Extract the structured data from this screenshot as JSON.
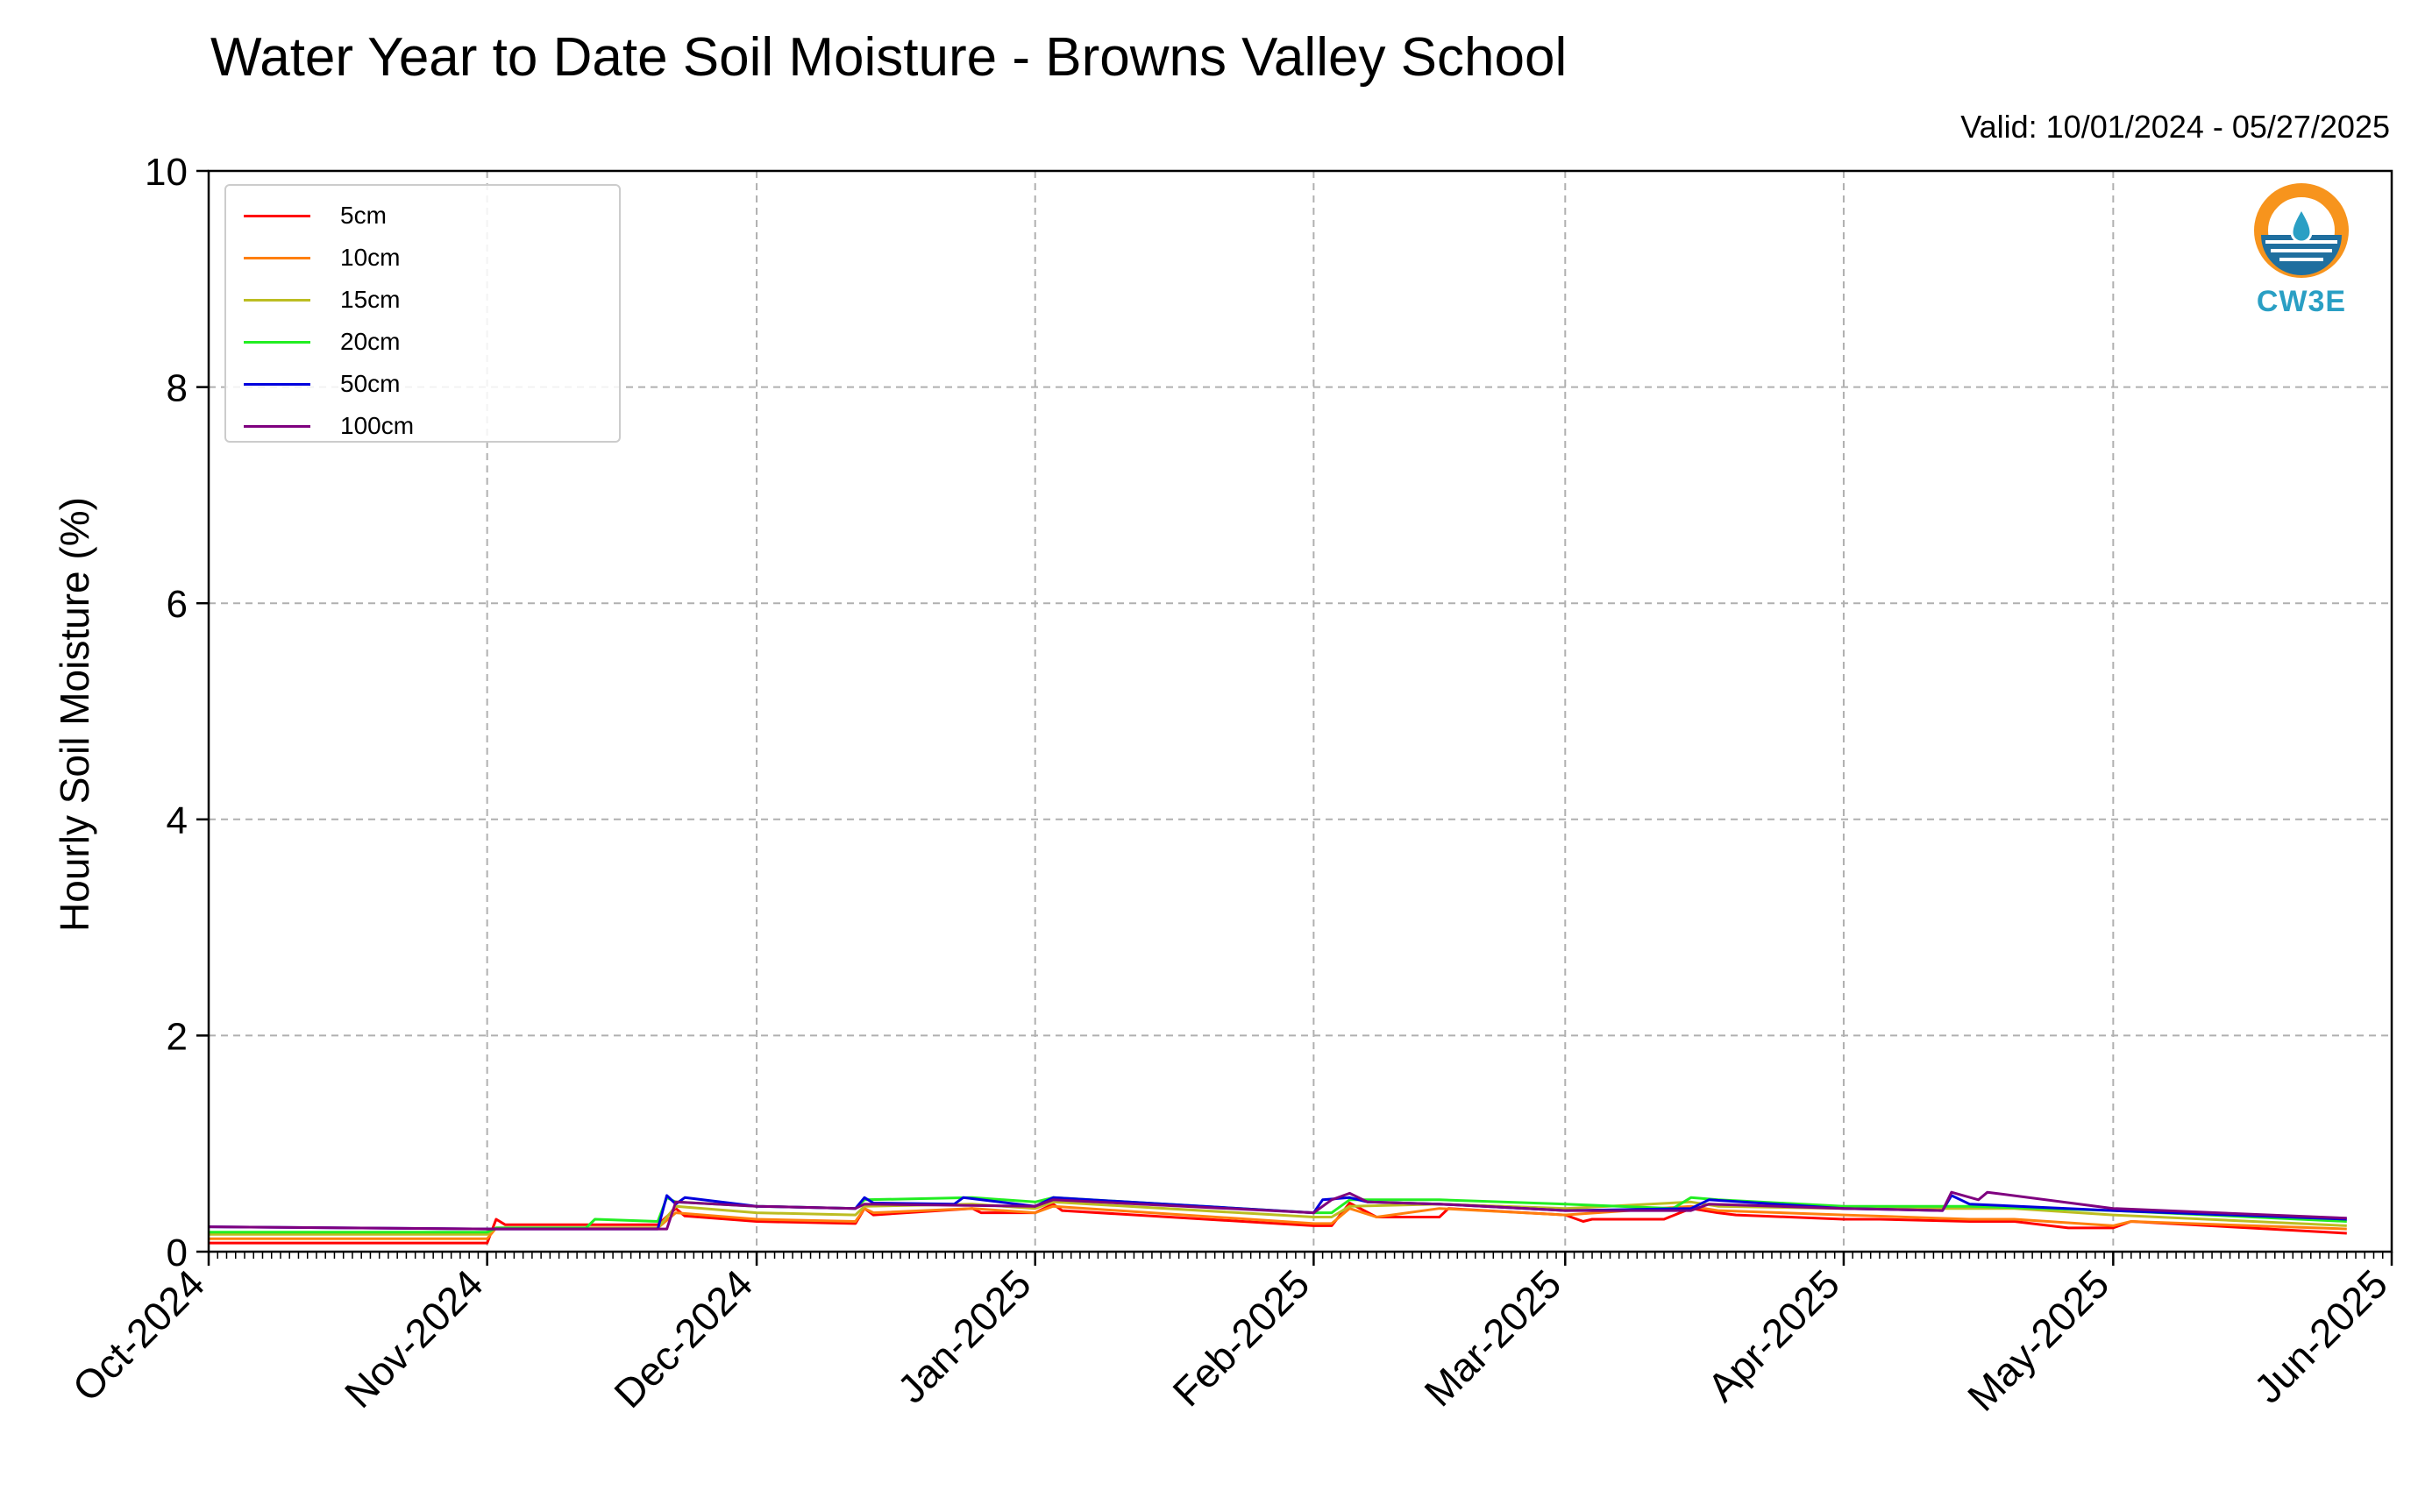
{
  "header": {
    "title": "Water Year to Date Soil Moisture - Browns Valley School",
    "valid": "Valid: 10/01/2024 - 05/27/2025"
  },
  "logo": {
    "text": "CW3E",
    "icon": "cw3e-droplet-logo"
  },
  "chart_data": {
    "type": "line",
    "title": "Water Year to Date Soil Moisture - Browns Valley School",
    "xlabel": "",
    "ylabel": "Hourly Soil Moisture (%)",
    "ylim": [
      0,
      10
    ],
    "yticks": [
      0,
      2,
      4,
      6,
      8,
      10
    ],
    "xlim": [
      "2024-10-01",
      "2025-06-01"
    ],
    "xtick_labels": [
      "Oct-2024",
      "Nov-2024",
      "Dec-2024",
      "Jan-2025",
      "Feb-2025",
      "Mar-2025",
      "Apr-2025",
      "May-2025",
      "Jun-2025"
    ],
    "xtick_dates": [
      "2024-10-01",
      "2024-11-01",
      "2024-12-01",
      "2025-01-01",
      "2025-02-01",
      "2025-03-01",
      "2025-04-01",
      "2025-05-01",
      "2025-06-01"
    ],
    "grid": true,
    "legend_position": "top-left",
    "series": [
      {
        "name": "5cm",
        "color": "#ff0000",
        "x": [
          "2024-10-01",
          "2024-11-01",
          "2024-11-02",
          "2024-11-03",
          "2024-11-20",
          "2024-11-22",
          "2024-11-23",
          "2024-12-01",
          "2024-12-12",
          "2024-12-13",
          "2024-12-14",
          "2024-12-25",
          "2024-12-26",
          "2025-01-01",
          "2025-01-03",
          "2025-01-04",
          "2025-02-01",
          "2025-02-03",
          "2025-02-05",
          "2025-02-08",
          "2025-02-15",
          "2025-02-16",
          "2025-03-01",
          "2025-03-03",
          "2025-03-04",
          "2025-03-12",
          "2025-03-15",
          "2025-03-18",
          "2025-03-20",
          "2025-04-01",
          "2025-04-05",
          "2025-04-15",
          "2025-04-20",
          "2025-04-26",
          "2025-05-01",
          "2025-05-03",
          "2025-05-27"
        ],
        "y": [
          0.08,
          0.08,
          0.3,
          0.25,
          0.25,
          0.4,
          0.33,
          0.28,
          0.26,
          0.4,
          0.34,
          0.4,
          0.36,
          0.36,
          0.44,
          0.38,
          0.24,
          0.24,
          0.45,
          0.32,
          0.32,
          0.4,
          0.34,
          0.28,
          0.3,
          0.3,
          0.4,
          0.36,
          0.34,
          0.3,
          0.3,
          0.28,
          0.28,
          0.22,
          0.22,
          0.28,
          0.17
        ]
      },
      {
        "name": "10cm",
        "color": "#ff7f0e",
        "x": [
          "2024-10-01",
          "2024-11-01",
          "2024-11-02",
          "2024-11-20",
          "2024-11-22",
          "2024-12-01",
          "2024-12-12",
          "2024-12-13",
          "2024-12-14",
          "2024-12-25",
          "2025-01-01",
          "2025-01-03",
          "2025-02-01",
          "2025-02-03",
          "2025-02-05",
          "2025-02-08",
          "2025-02-15",
          "2025-03-01",
          "2025-03-15",
          "2025-03-18",
          "2025-04-01",
          "2025-04-15",
          "2025-04-20",
          "2025-05-01",
          "2025-05-03",
          "2025-05-27"
        ],
        "y": [
          0.12,
          0.12,
          0.22,
          0.22,
          0.36,
          0.3,
          0.28,
          0.4,
          0.36,
          0.4,
          0.36,
          0.42,
          0.26,
          0.26,
          0.4,
          0.32,
          0.4,
          0.34,
          0.42,
          0.38,
          0.34,
          0.3,
          0.3,
          0.24,
          0.28,
          0.21
        ]
      },
      {
        "name": "15cm",
        "color": "#bcbd22",
        "x": [
          "2024-10-01",
          "2024-11-01",
          "2024-11-02",
          "2024-11-20",
          "2024-11-22",
          "2024-12-01",
          "2024-12-12",
          "2024-12-13",
          "2024-12-25",
          "2025-01-01",
          "2025-01-03",
          "2025-02-01",
          "2025-02-03",
          "2025-02-05",
          "2025-02-15",
          "2025-03-01",
          "2025-03-15",
          "2025-03-18",
          "2025-04-01",
          "2025-04-15",
          "2025-04-20",
          "2025-05-01",
          "2025-05-27"
        ],
        "y": [
          0.16,
          0.16,
          0.22,
          0.22,
          0.42,
          0.36,
          0.34,
          0.42,
          0.44,
          0.4,
          0.46,
          0.32,
          0.32,
          0.42,
          0.44,
          0.4,
          0.46,
          0.42,
          0.4,
          0.4,
          0.4,
          0.34,
          0.24
        ]
      },
      {
        "name": "20cm",
        "color": "#22ee22",
        "x": [
          "2024-10-01",
          "2024-11-01",
          "2024-11-02",
          "2024-11-12",
          "2024-11-13",
          "2024-11-20",
          "2024-11-21",
          "2024-11-22",
          "2024-12-01",
          "2024-12-12",
          "2024-12-13",
          "2024-12-25",
          "2025-01-01",
          "2025-01-03",
          "2025-02-01",
          "2025-02-03",
          "2025-02-05",
          "2025-02-15",
          "2025-03-01",
          "2025-03-13",
          "2025-03-15",
          "2025-03-18",
          "2025-04-01",
          "2025-04-13",
          "2025-04-15",
          "2025-05-01",
          "2025-05-27"
        ],
        "y": [
          0.18,
          0.18,
          0.22,
          0.22,
          0.3,
          0.28,
          0.5,
          0.46,
          0.42,
          0.4,
          0.48,
          0.5,
          0.46,
          0.5,
          0.36,
          0.36,
          0.48,
          0.48,
          0.44,
          0.4,
          0.5,
          0.48,
          0.42,
          0.42,
          0.42,
          0.38,
          0.28
        ]
      },
      {
        "name": "50cm",
        "color": "#0000dd",
        "x": [
          "2024-10-01",
          "2024-11-01",
          "2024-11-20",
          "2024-11-21",
          "2024-11-22",
          "2024-11-23",
          "2024-12-01",
          "2024-12-12",
          "2024-12-13",
          "2024-12-14",
          "2024-12-23",
          "2024-12-24",
          "2025-01-01",
          "2025-01-03",
          "2025-02-01",
          "2025-02-02",
          "2025-02-05",
          "2025-02-07",
          "2025-02-15",
          "2025-03-01",
          "2025-03-15",
          "2025-03-17",
          "2025-04-01",
          "2025-04-12",
          "2025-04-13",
          "2025-04-15",
          "2025-05-01",
          "2025-05-27"
        ],
        "y": [
          0.23,
          0.21,
          0.21,
          0.52,
          0.44,
          0.5,
          0.42,
          0.4,
          0.5,
          0.45,
          0.44,
          0.5,
          0.42,
          0.5,
          0.36,
          0.48,
          0.5,
          0.46,
          0.44,
          0.38,
          0.4,
          0.48,
          0.4,
          0.38,
          0.52,
          0.44,
          0.38,
          0.3
        ]
      },
      {
        "name": "100cm",
        "color": "#7f007f",
        "x": [
          "2024-10-01",
          "2024-11-01",
          "2024-11-21",
          "2024-11-22",
          "2024-12-01",
          "2024-12-12",
          "2024-12-13",
          "2025-01-01",
          "2025-01-03",
          "2025-02-01",
          "2025-02-03",
          "2025-02-05",
          "2025-02-07",
          "2025-02-15",
          "2025-03-01",
          "2025-03-15",
          "2025-03-17",
          "2025-04-01",
          "2025-04-12",
          "2025-04-13",
          "2025-04-16",
          "2025-04-17",
          "2025-05-01",
          "2025-05-27"
        ],
        "y": [
          0.23,
          0.21,
          0.21,
          0.46,
          0.42,
          0.4,
          0.44,
          0.42,
          0.48,
          0.36,
          0.48,
          0.54,
          0.46,
          0.44,
          0.38,
          0.38,
          0.44,
          0.4,
          0.38,
          0.55,
          0.48,
          0.55,
          0.4,
          0.31
        ]
      }
    ]
  }
}
